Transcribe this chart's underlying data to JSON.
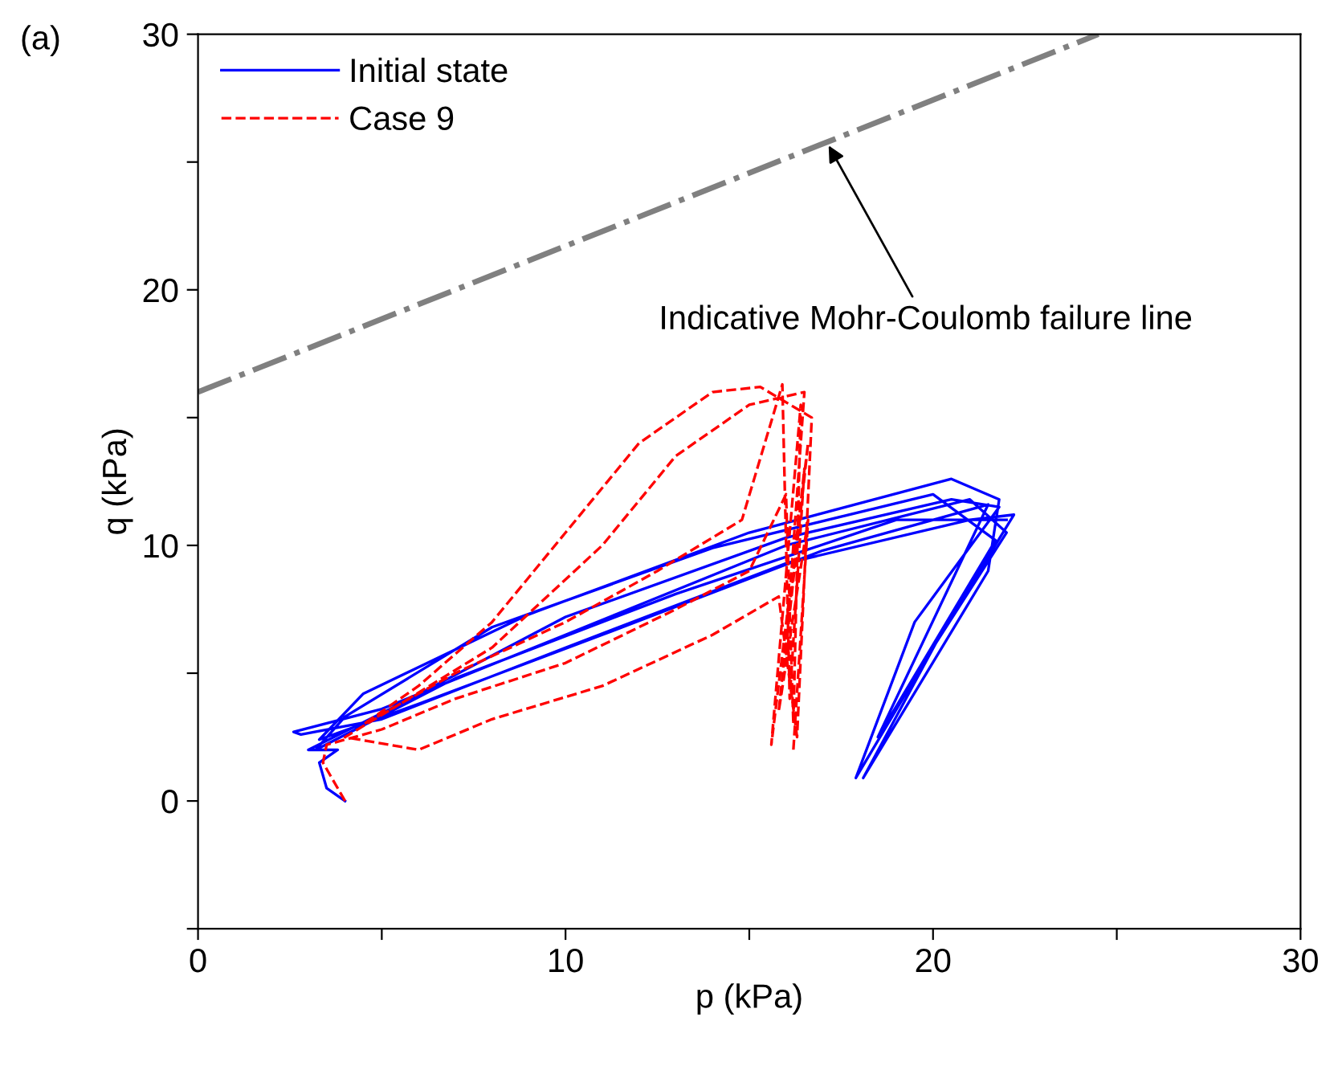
{
  "chart_data": {
    "type": "line",
    "xlabel": "p (kPa)",
    "ylabel": "q (kPa)",
    "xlim": [
      0,
      30
    ],
    "ylim": [
      -5,
      30
    ],
    "xticks": [
      0,
      {
        "value": 5,
        "label": null
      },
      10,
      {
        "value": 15,
        "label": null
      },
      20,
      {
        "value": 25,
        "label": null
      },
      30
    ],
    "yticks": [
      {
        "value": -5,
        "label": null
      },
      0,
      {
        "value": 5,
        "label": null
      },
      10,
      {
        "value": 15,
        "label": null
      },
      20,
      {
        "value": 25,
        "label": null
      },
      30
    ],
    "grid": false,
    "legend": "top left",
    "tick_labels": true,
    "series": [
      {
        "name": "Initial state",
        "color": "#0000ff",
        "line_style": "solid",
        "x": [
          4.0,
          3.5,
          3.3,
          3.8,
          3.0,
          5.5,
          10,
          16,
          20.5,
          21.8,
          19.5,
          17.9,
          20,
          22,
          21,
          16,
          10,
          5,
          2.6,
          2.8,
          5,
          10,
          16,
          21,
          22.2,
          20.2,
          18.1,
          21.5,
          21.8,
          20.5,
          15,
          9,
          4.5,
          3.3,
          6,
          11,
          17,
          21.5,
          18.5,
          21.7,
          20,
          14,
          8,
          4,
          3.2,
          7,
          13,
          19,
          22
        ],
        "values": [
          0.0,
          0.5,
          1.5,
          2.0,
          2.0,
          3.8,
          7.2,
          10.3,
          11.8,
          11.5,
          7,
          0.9,
          6,
          10.5,
          11.8,
          10,
          6.5,
          3.6,
          2.7,
          2.6,
          3.2,
          6,
          9.3,
          11,
          11.2,
          6.5,
          0.9,
          9,
          11.8,
          12.6,
          10.5,
          7.3,
          4.2,
          2.4,
          3.8,
          6.5,
          9.8,
          11.6,
          2.5,
          10.2,
          12,
          9.9,
          6.8,
          3.3,
          2.0,
          4.8,
          8.1,
          11,
          11
        ]
      },
      {
        "name": "Case 9",
        "color": "#ff0000",
        "line_style": "dashed",
        "x": [
          4.0,
          3.4,
          3.5,
          5,
          7,
          10,
          13,
          15,
          16,
          16.2,
          16.4,
          15.6,
          16.6,
          16,
          16.5,
          15,
          13,
          11,
          8,
          5.5,
          4,
          6,
          8,
          11,
          14,
          15.8,
          16.3,
          16.7,
          15.3,
          14,
          12,
          10,
          8,
          6,
          4.5,
          7,
          10,
          12.5,
          14.8,
          15.9,
          16.1,
          16.5,
          15.8,
          16.6,
          16.2
        ],
        "values": [
          0.0,
          1.5,
          2.2,
          2.8,
          4,
          5.4,
          7.5,
          9,
          12,
          3,
          15.5,
          2.2,
          14,
          6,
          16,
          15.5,
          13.5,
          10,
          6,
          3.8,
          2.5,
          2.0,
          3.2,
          4.5,
          6.5,
          8,
          2.5,
          15,
          16.2,
          16,
          14,
          10.5,
          7,
          4.5,
          3,
          5,
          7,
          9,
          11,
          16.3,
          4,
          13,
          3.5,
          11,
          2.0
        ]
      },
      {
        "color": "#808080",
        "line_style": "dashdot",
        "x": [
          0,
          24.5
        ],
        "values": [
          16,
          30
        ]
      }
    ],
    "annotations": [
      "(a)",
      {
        "text": "Indicative Mohr-Coulomb failure line",
        "x": 17.1,
        "y": 25.8
      }
    ]
  }
}
